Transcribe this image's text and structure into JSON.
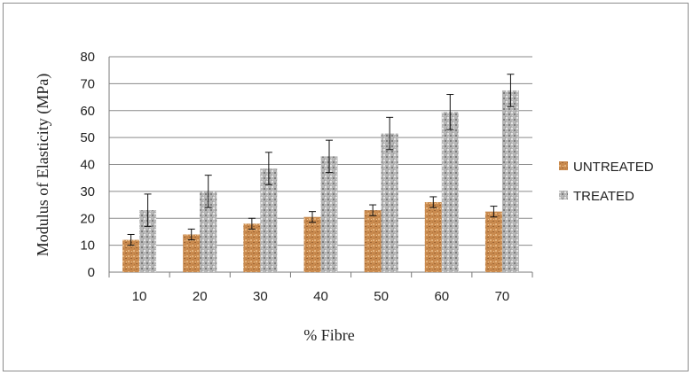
{
  "chart_data": {
    "type": "bar",
    "title": "",
    "xlabel": "% Fibre",
    "ylabel": "Modulus of Elasticity  (MPa)",
    "ylim": [
      0,
      80
    ],
    "yticks": [
      0,
      10,
      20,
      30,
      40,
      50,
      60,
      70,
      80
    ],
    "grid": true,
    "legend_position": "right",
    "categories": [
      "10",
      "20",
      "30",
      "40",
      "50",
      "60",
      "70"
    ],
    "series": [
      {
        "name": "UNTREATED",
        "color": "#c98a4e",
        "values": [
          12,
          14,
          18,
          20.5,
          23,
          26,
          22.5
        ],
        "error": [
          2,
          2,
          2,
          2,
          2,
          2,
          2
        ]
      },
      {
        "name": "TREATED",
        "color": "#a9a9a9",
        "values": [
          23,
          30,
          38.5,
          43,
          51.5,
          59.5,
          67.5
        ],
        "error": [
          6,
          6,
          6,
          6,
          6,
          6.5,
          6
        ]
      }
    ]
  }
}
